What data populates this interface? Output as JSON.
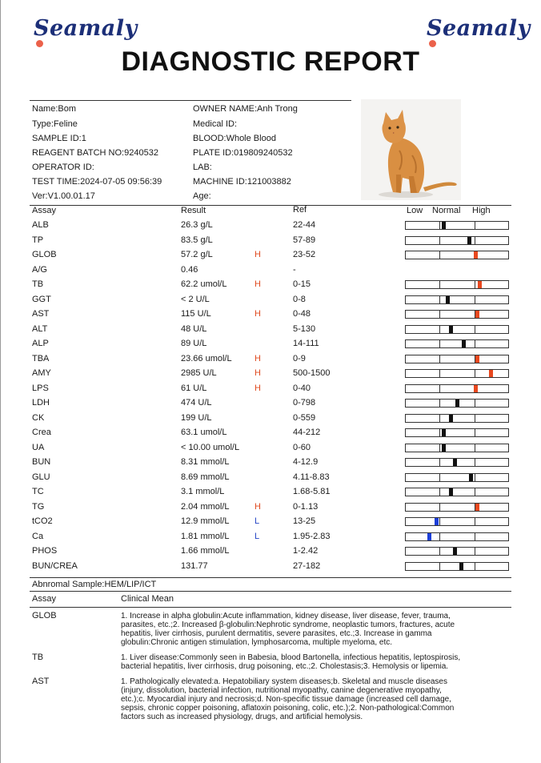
{
  "brand": {
    "logo_left": "Seamaly",
    "logo_right": "Seamaly"
  },
  "title": "DIAGNOSTIC REPORT",
  "info": {
    "name": "Name:Bom",
    "owner": "OWNER NAME:Anh Trong",
    "type": "Type:Feline",
    "medical_id": "Medical ID:",
    "sample_id": "SAMPLE ID:1",
    "blood": "BLOOD:Whole Blood",
    "reagent": "REAGENT BATCH NO:9240532",
    "plate": "PLATE ID:019809240532",
    "operator": "OPERATOR ID:",
    "lab": "LAB:",
    "test_time": "TEST TIME:2024-07-05 09:56:39",
    "machine": "MACHINE ID:121003882",
    "ver": "Ver:V1.00.01.17",
    "age": "Age:"
  },
  "columns": {
    "assay": "Assay",
    "result": "Result",
    "ref": "Ref",
    "low": "Low",
    "normal": "Normal",
    "high": "High"
  },
  "results": [
    {
      "assay": "ALB",
      "result": "26.3 g/L",
      "flag": "",
      "ref": "22-44",
      "level": 0.37
    },
    {
      "assay": "TP",
      "result": "83.5 g/L",
      "flag": "",
      "ref": "57-89",
      "level": 0.62
    },
    {
      "assay": "GLOB",
      "result": "57.2 g/L",
      "flag": "H",
      "ref": "23-52",
      "level": 0.68
    },
    {
      "assay": "A/G",
      "result": "0.46",
      "flag": "",
      "ref": "-",
      "level": null
    },
    {
      "assay": "TB",
      "result": "62.2 umol/L",
      "flag": "H",
      "ref": "0-15",
      "level": 0.72
    },
    {
      "assay": "GGT",
      "result": "< 2 U/L",
      "flag": "",
      "ref": "0-8",
      "level": 0.41
    },
    {
      "assay": "AST",
      "result": "115 U/L",
      "flag": "H",
      "ref": "0-48",
      "level": 0.7
    },
    {
      "assay": "ALT",
      "result": "48 U/L",
      "flag": "",
      "ref": "5-130",
      "level": 0.44
    },
    {
      "assay": "ALP",
      "result": "89 U/L",
      "flag": "",
      "ref": "14-111",
      "level": 0.57
    },
    {
      "assay": "TBA",
      "result": "23.66 umol/L",
      "flag": "H",
      "ref": "0-9",
      "level": 0.7
    },
    {
      "assay": "AMY",
      "result": "2985 U/L",
      "flag": "H",
      "ref": "500-1500",
      "level": 0.83
    },
    {
      "assay": "LPS",
      "result": "61 U/L",
      "flag": "H",
      "ref": "0-40",
      "level": 0.68
    },
    {
      "assay": "LDH",
      "result": "474 U/L",
      "flag": "",
      "ref": "0-798",
      "level": 0.5
    },
    {
      "assay": "CK",
      "result": "199 U/L",
      "flag": "",
      "ref": "0-559",
      "level": 0.44
    },
    {
      "assay": "Crea",
      "result": "63.1 umol/L",
      "flag": "",
      "ref": "44-212",
      "level": 0.37
    },
    {
      "assay": "UA",
      "result": "< 10.00 umol/L",
      "flag": "",
      "ref": "0-60",
      "level": 0.37
    },
    {
      "assay": "BUN",
      "result": "8.31 mmol/L",
      "flag": "",
      "ref": "4-12.9",
      "level": 0.48
    },
    {
      "assay": "GLU",
      "result": "8.69 mmol/L",
      "flag": "",
      "ref": "4.11-8.83",
      "level": 0.64
    },
    {
      "assay": "TC",
      "result": "3.1 mmol/L",
      "flag": "",
      "ref": "1.68-5.81",
      "level": 0.44
    },
    {
      "assay": "TG",
      "result": "2.04 mmol/L",
      "flag": "H",
      "ref": "0-1.13",
      "level": 0.7
    },
    {
      "assay": "tCO2",
      "result": "12.9 mmol/L",
      "flag": "L",
      "ref": "13-25",
      "level": 0.3
    },
    {
      "assay": "Ca",
      "result": "1.81 mmol/L",
      "flag": "L",
      "ref": "1.95-2.83",
      "level": 0.23
    },
    {
      "assay": "PHOS",
      "result": "1.66 mmol/L",
      "flag": "",
      "ref": "1-2.42",
      "level": 0.48
    },
    {
      "assay": "BUN/CREA",
      "result": "131.77",
      "flag": "",
      "ref": "27-182",
      "level": 0.54
    }
  ],
  "abnormal_sample": "Abnromal Sample:HEM/LIP/ICT",
  "clinical": {
    "header_assay": "Assay",
    "header_mean": "Clinical Mean",
    "items": [
      {
        "assay": "GLOB",
        "lines": [
          "1. Increase in alpha globulin:Acute inflammation, kidney disease, liver disease, fever, trauma,",
          "parasites, etc.;2. Increased β-globulin:Nephrotic syndrome, neoplastic tumors, fractures, acute",
          "hepatitis, liver cirrhosis, purulent dermatitis, severe parasites, etc.;3. Increase in gamma",
          "globulin:Chronic antigen stimulation, lymphosarcoma, multiple myeloma, etc."
        ]
      },
      {
        "assay": "TB",
        "lines": [
          "1. Liver disease:Commonly seen in Babesia, blood Bartonella, infectious hepatitis, leptospirosis,",
          "bacterial hepatitis, liver cirrhosis, drug poisoning, etc.;2. Cholestasis;3. Hemolysis or lipemia."
        ]
      },
      {
        "assay": "AST",
        "lines": [
          "1. Pathologically elevated:a. Hepatobiliary system diseases;b. Skeletal and muscle diseases",
          "(injury, dissolution, bacterial infection, nutritional myopathy, canine degenerative myopathy,",
          "etc.);c. Myocardial injury and necrosis;d. Non-specific tissue damage (increased cell damage,",
          "sepsis, chronic copper poisoning, aflatoxin poisoning, colic, etc.);2. Non-pathological:Common",
          "factors such as increased physiology, drugs, and artificial hemolysis."
        ]
      }
    ]
  }
}
